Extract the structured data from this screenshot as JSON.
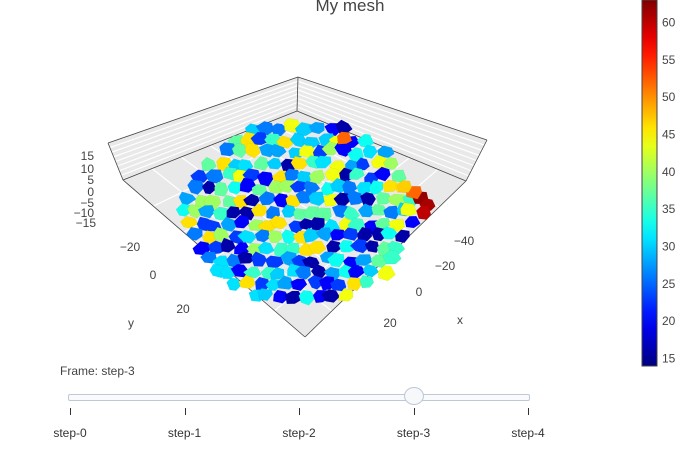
{
  "chart_data": {
    "type": "mesh3d",
    "title": "My mesh",
    "x_axis": {
      "label": "x",
      "ticks": [
        -40,
        -20,
        0,
        20
      ]
    },
    "y_axis": {
      "label": "y",
      "ticks": [
        -20,
        0,
        20
      ]
    },
    "z_axis": {
      "label": "",
      "ticks": [
        15,
        10,
        5,
        0,
        -5,
        -10,
        -15
      ]
    },
    "colorscale": "jet",
    "color_range": [
      14,
      63
    ],
    "colorbar_ticks": [
      15,
      20,
      25,
      30,
      35,
      40,
      45,
      50,
      55,
      60
    ]
  },
  "slider": {
    "current_label": "Frame: step-3",
    "steps": [
      "step-0",
      "step-1",
      "step-2",
      "step-3",
      "step-4"
    ],
    "active_index": 3
  },
  "colors": {
    "axis_text": "#444444",
    "grid": "#cfcfcf",
    "pane": "#e9e9e9"
  }
}
